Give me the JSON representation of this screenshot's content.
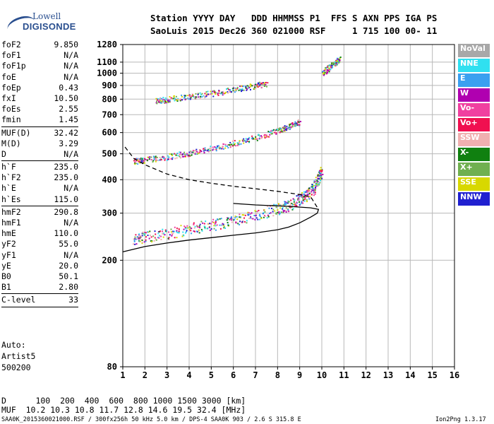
{
  "logo": {
    "line1": "Lowell",
    "line2": "DIGISONDE"
  },
  "header": {
    "line1": "Station YYYY DAY   DDD HHMMSS P1  FFS S AXN PPS IGA PS",
    "line2": "SaoLuis 2015 Dec26 360 021000 RSF     1 715 100 00- 11"
  },
  "params_groups": [
    [
      [
        "foF2",
        "9.850"
      ],
      [
        "foF1",
        "N/A"
      ],
      [
        "foF1p",
        "N/A"
      ],
      [
        "foE",
        "N/A"
      ],
      [
        "foEp",
        "0.43"
      ],
      [
        "fxI",
        "10.50"
      ],
      [
        "foEs",
        "2.55"
      ],
      [
        "fmin",
        "1.45"
      ]
    ],
    [
      [
        "MUF(D)",
        "32.42"
      ],
      [
        "M(D)",
        "3.29"
      ],
      [
        "D",
        "N/A"
      ]
    ],
    [
      [
        "h`F",
        "235.0"
      ],
      [
        "h`F2",
        "235.0"
      ],
      [
        "h`E",
        "N/A"
      ],
      [
        "h`Es",
        "115.0"
      ]
    ],
    [
      [
        "hmF2",
        "290.8"
      ],
      [
        "hmF1",
        "N/A"
      ],
      [
        "hmE",
        "110.0"
      ],
      [
        "yF2",
        "55.0"
      ],
      [
        "yF1",
        "N/A"
      ],
      [
        "yE",
        "20.0"
      ],
      [
        "B0",
        "50.1"
      ],
      [
        "B1",
        "2.80"
      ]
    ],
    [
      [
        "C-level",
        "33"
      ]
    ]
  ],
  "auto": {
    "l1": "Auto:",
    "l2": "Artist5",
    "l3": "500200"
  },
  "legend": [
    {
      "label": "NoVal",
      "color": "#a8a8a8"
    },
    {
      "label": "NNE",
      "color": "#30e0f0"
    },
    {
      "label": "E",
      "color": "#3aa0f0"
    },
    {
      "label": "W",
      "color": "#b000b0"
    },
    {
      "label": "Vo-",
      "color": "#f040a0"
    },
    {
      "label": "Vo+",
      "color": "#f01050"
    },
    {
      "label": "SSW",
      "color": "#f0b0b0"
    },
    {
      "label": "X-",
      "color": "#108010"
    },
    {
      "label": "X+",
      "color": "#70b050"
    },
    {
      "label": "SSE",
      "color": "#d8d800"
    },
    {
      "label": "NNW",
      "color": "#2020d0"
    }
  ],
  "footer": {
    "d_line": "D      100  200  400  600  800 1000 1500 3000 [km]",
    "muf_line": "MUF  10.2 10.3 10.8 11.7 12.8 14.6 19.5 32.4 [MHz]",
    "file": "SAA0K_2015360021000.RSF / 300fx256h 50 kHz 5.0 km / DPS-4 SAA0K 903 / 2.6 S 315.8 E",
    "version": "Ion2Png 1.3.17"
  },
  "chart_data": {
    "type": "scatter",
    "xlim": [
      1,
      16
    ],
    "ylim": [
      80,
      1280
    ],
    "x_ticks": [
      1,
      2,
      3,
      4,
      5,
      6,
      7,
      8,
      9,
      10,
      11,
      12,
      13,
      14,
      15,
      16
    ],
    "y_ticks": [
      80,
      200,
      300,
      400,
      500,
      600,
      700,
      800,
      900,
      1000,
      1100,
      1280
    ],
    "y_scale": "log",
    "grid": true,
    "traces": [
      {
        "name": "F2 trace",
        "points": [
          [
            1.5,
            240
          ],
          [
            2,
            245
          ],
          [
            3,
            252
          ],
          [
            4,
            262
          ],
          [
            5,
            272
          ],
          [
            6,
            282
          ],
          [
            7,
            296
          ],
          [
            8,
            312
          ],
          [
            8.5,
            322
          ],
          [
            9,
            338
          ],
          [
            9.3,
            352
          ],
          [
            9.6,
            370
          ],
          [
            9.8,
            400
          ],
          [
            10,
            430
          ]
        ]
      },
      {
        "name": "2nd hop",
        "points": [
          [
            1.5,
            470
          ],
          [
            2,
            475
          ],
          [
            3,
            488
          ],
          [
            4,
            505
          ],
          [
            5,
            525
          ],
          [
            6,
            548
          ],
          [
            7,
            575
          ],
          [
            8,
            612
          ],
          [
            8.5,
            635
          ],
          [
            9,
            660
          ]
        ]
      },
      {
        "name": "3rd hop",
        "points": [
          [
            2.5,
            790
          ],
          [
            3,
            800
          ],
          [
            4,
            820
          ],
          [
            5,
            842
          ],
          [
            6,
            870
          ],
          [
            7,
            900
          ],
          [
            7.5,
            920
          ]
        ]
      },
      {
        "name": "4th hop",
        "points": [
          [
            10,
            1000
          ],
          [
            10.3,
            1050
          ],
          [
            10.6,
            1100
          ],
          [
            10.8,
            1140
          ]
        ]
      }
    ],
    "profile": {
      "points": [
        [
          1,
          215
        ],
        [
          2,
          225
        ],
        [
          3,
          232
        ],
        [
          4,
          238
        ],
        [
          5,
          243
        ],
        [
          6,
          248
        ],
        [
          7,
          253
        ],
        [
          8,
          260
        ],
        [
          8.5,
          266
        ],
        [
          9,
          276
        ],
        [
          9.5,
          290
        ],
        [
          9.8,
          300
        ],
        [
          9.85,
          310
        ],
        [
          9.5,
          314
        ],
        [
          8.5,
          318
        ],
        [
          7,
          322
        ],
        [
          6,
          326
        ]
      ]
    },
    "muf_curve": {
      "points": [
        [
          1.1,
          530
        ],
        [
          1.5,
          480
        ],
        [
          2,
          455
        ],
        [
          3,
          420
        ],
        [
          4,
          400
        ],
        [
          5,
          388
        ],
        [
          6,
          378
        ],
        [
          7,
          370
        ],
        [
          8,
          362
        ],
        [
          9,
          352
        ],
        [
          9.5,
          345
        ],
        [
          9.85,
          310
        ]
      ]
    }
  }
}
